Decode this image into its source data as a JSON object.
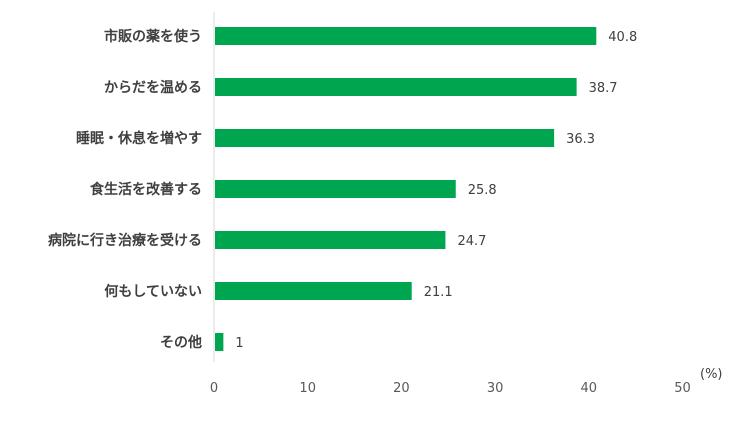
{
  "chart_data": {
    "type": "bar",
    "orientation": "horizontal",
    "categories": [
      "市販の薬を使う",
      "からだを温める",
      "睡眠・休息を増やす",
      "食生活を改善する",
      "病院に行き治療を受ける",
      "何もしていない",
      "その他"
    ],
    "values": [
      40.8,
      38.7,
      36.3,
      25.8,
      24.7,
      21.1,
      1
    ],
    "value_labels": [
      "40.8",
      "38.7",
      "36.3",
      "25.8",
      "24.7",
      "21.1",
      "1"
    ],
    "x_ticks": [
      "0",
      "10",
      "20",
      "30",
      "40",
      "50"
    ],
    "xlim": [
      0,
      50
    ],
    "unit": "(%)",
    "grid": false,
    "legend": "none",
    "bar_color": "#00a64f",
    "axis_color": "#d9d9d9"
  }
}
